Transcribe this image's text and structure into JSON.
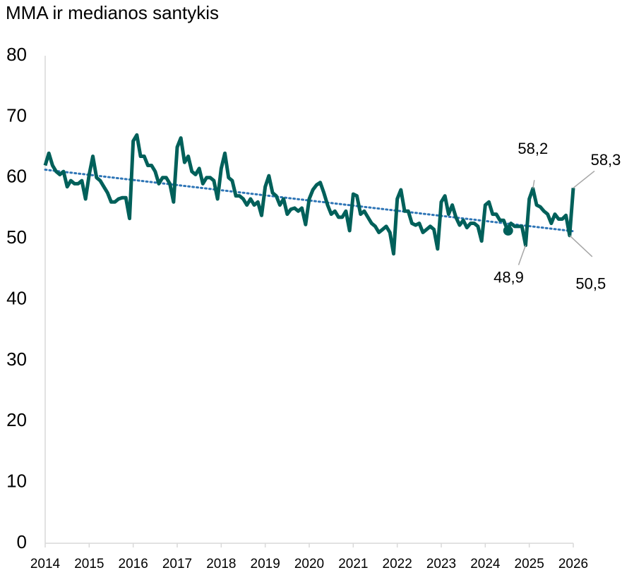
{
  "chart_data": {
    "type": "line",
    "title": "MMA ir medianos santykis",
    "xlim": [
      2014,
      2026
    ],
    "xticks": [
      2014,
      2015,
      2016,
      2017,
      2018,
      2019,
      2020,
      2021,
      2022,
      2023,
      2024,
      2025,
      2026
    ],
    "ylim": [
      0,
      80
    ],
    "yticks": [
      0,
      10,
      20,
      30,
      40,
      50,
      60,
      70,
      80
    ],
    "grid": false,
    "x": [
      2014,
      2014.083,
      2014.167,
      2014.25,
      2014.333,
      2014.417,
      2014.5,
      2014.583,
      2014.667,
      2014.75,
      2014.833,
      2014.917,
      2015,
      2015.083,
      2015.167,
      2015.25,
      2015.333,
      2015.417,
      2015.5,
      2015.583,
      2015.667,
      2015.75,
      2015.833,
      2015.917,
      2016,
      2016.083,
      2016.167,
      2016.25,
      2016.333,
      2016.417,
      2016.5,
      2016.583,
      2016.667,
      2016.75,
      2016.833,
      2016.917,
      2017,
      2017.083,
      2017.167,
      2017.25,
      2017.333,
      2017.417,
      2017.5,
      2017.583,
      2017.667,
      2017.75,
      2017.833,
      2017.917,
      2018,
      2018.083,
      2018.167,
      2018.25,
      2018.333,
      2018.417,
      2018.5,
      2018.583,
      2018.667,
      2018.75,
      2018.833,
      2018.917,
      2019,
      2019.083,
      2019.167,
      2019.25,
      2019.333,
      2019.417,
      2019.5,
      2019.583,
      2019.667,
      2019.75,
      2019.833,
      2019.917,
      2020,
      2020.083,
      2020.167,
      2020.25,
      2020.333,
      2020.417,
      2020.5,
      2020.583,
      2020.667,
      2020.75,
      2020.833,
      2020.917,
      2021,
      2021.083,
      2021.167,
      2021.25,
      2021.333,
      2021.417,
      2021.5,
      2021.583,
      2021.667,
      2021.75,
      2021.833,
      2021.917,
      2022,
      2022.083,
      2022.167,
      2022.25,
      2022.333,
      2022.417,
      2022.5,
      2022.583,
      2022.667,
      2022.75,
      2022.833,
      2022.917,
      2023,
      2023.083,
      2023.167,
      2023.25,
      2023.333,
      2023.417,
      2023.5,
      2023.583,
      2023.667,
      2023.75,
      2023.833,
      2023.917,
      2024,
      2024.083,
      2024.167,
      2024.25,
      2024.333,
      2024.417,
      2024.5,
      2024.583,
      2024.667,
      2024.75,
      2024.833,
      2024.917,
      2025,
      2025.083,
      2025.167,
      2025.25,
      2025.333,
      2025.417,
      2025.5,
      2025.583,
      2025.667,
      2025.75,
      2025.833,
      2025.917,
      2026
    ],
    "series": [
      {
        "color": "#00605a",
        "values": [
          62,
          64,
          62,
          61,
          60.5,
          61,
          58.5,
          59.5,
          59,
          59,
          59.5,
          56.5,
          60.5,
          63.5,
          60,
          59.5,
          58.5,
          57.5,
          56,
          56,
          56.5,
          56.7,
          56.7,
          53.3,
          66,
          67,
          63.5,
          63.5,
          62,
          62,
          61,
          59,
          60,
          60,
          59,
          56,
          65,
          66.5,
          62.5,
          63.5,
          61,
          60.5,
          61.5,
          59,
          60,
          60,
          59.5,
          56.5,
          61.5,
          64,
          60,
          59.5,
          57,
          57,
          56.5,
          55.5,
          56.5,
          55.5,
          56,
          53.8,
          58.5,
          60.3,
          57.5,
          57,
          55.5,
          56.5,
          54,
          54.8,
          55,
          54.5,
          55,
          52.3,
          56.5,
          58,
          58.8,
          59.2,
          57.5,
          55.5,
          54,
          54.5,
          53.5,
          53.5,
          54.5,
          51.3,
          57.3,
          57,
          54,
          54.5,
          53.5,
          52.5,
          52,
          51,
          51.5,
          52,
          51,
          47.5,
          56.5,
          58,
          54.5,
          54.5,
          52.5,
          52.2,
          52.5,
          51,
          51.5,
          52,
          51.5,
          48.3,
          56,
          57,
          54,
          55.5,
          53.5,
          52.2,
          53,
          51.8,
          52.5,
          52.5,
          52,
          49.6,
          55.5,
          56,
          54,
          54,
          53,
          53,
          51.5,
          52.5,
          52,
          52,
          52,
          48.9,
          56.5,
          58.2,
          55.5,
          55.2,
          54.5,
          54,
          52.5,
          54,
          53.2,
          53.2,
          53.8,
          50.5,
          58.3
        ]
      }
    ],
    "trendline": {
      "color": "#2e75b6",
      "x": [
        2014,
        2026
      ],
      "values": [
        61.3,
        51.2
      ]
    },
    "marker": {
      "color": "#00605a",
      "x": 2024.52,
      "value": 51.3
    },
    "annotations": [
      {
        "x": 2025.083,
        "value": 58.2,
        "label": "58,2"
      },
      {
        "x": 2026,
        "value": 58.3,
        "label": "58,3"
      },
      {
        "x": 2024.917,
        "value": 48.9,
        "label": "48,9"
      },
      {
        "x": 2025.917,
        "value": 50.5,
        "label": "50,5"
      }
    ]
  }
}
